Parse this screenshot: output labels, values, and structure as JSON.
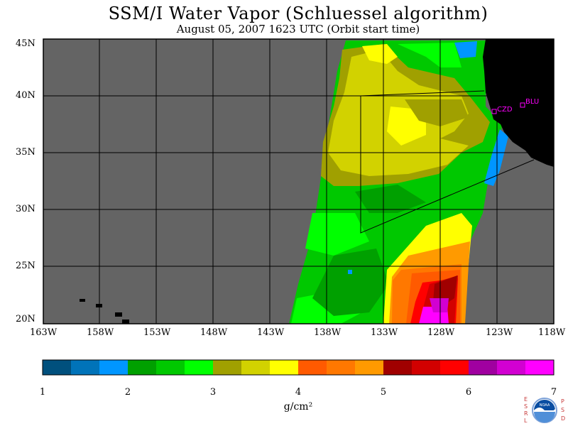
{
  "header": {
    "title": "SSM/I Water Vapor (Schluessel algorithm)",
    "subtitle": "August 05, 2007  1623 UTC  (Orbit start time)"
  },
  "map": {
    "lat_labels": [
      "45N",
      "40N",
      "35N",
      "30N",
      "25N",
      "20N"
    ],
    "lon_labels": [
      "163W",
      "158W",
      "153W",
      "148W",
      "143W",
      "138W",
      "133W",
      "128W",
      "123W",
      "118W"
    ],
    "stations": [
      {
        "id": "CZD",
        "label": "CZD"
      },
      {
        "id": "BLU",
        "label": "BLU"
      }
    ],
    "colors": {
      "no_data": "#646464",
      "land": "#000000",
      "grid": "#000000",
      "station": "#ff00ff"
    }
  },
  "colorbar": {
    "ticks": [
      "1",
      "2",
      "3",
      "4",
      "5",
      "6",
      "7"
    ],
    "units": "g/cm²",
    "colors": [
      "#00507d",
      "#0073b9",
      "#0096ff",
      "#00a000",
      "#00c800",
      "#00ff00",
      "#a0a000",
      "#d2d200",
      "#ffff00",
      "#ff5a00",
      "#ff7800",
      "#ff9a00",
      "#a00000",
      "#d20000",
      "#ff0000",
      "#a000a0",
      "#d200d2",
      "#ff00ff"
    ]
  },
  "logo": {
    "left_letters": "ESRL",
    "right_letters": "PSD",
    "center_text": "NOAA"
  }
}
